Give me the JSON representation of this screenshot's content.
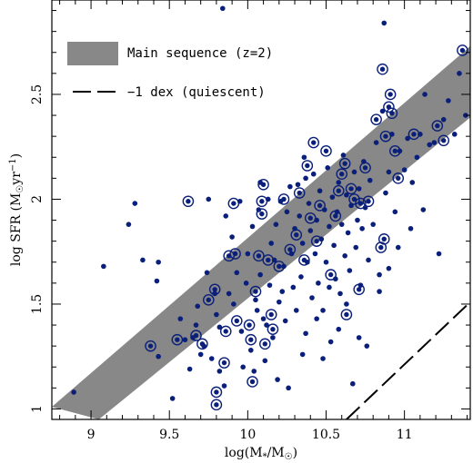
{
  "chart_data": {
    "type": "scatter",
    "xlabel": "log(M*/M☉)",
    "ylabel": "log SFR (M☉yr⁻¹)",
    "xlim": [
      8.75,
      11.42
    ],
    "ylim": [
      0.95,
      2.95
    ],
    "x_ticks": [
      "9",
      "9.5",
      "10",
      "10.5",
      "11"
    ],
    "x_tick_values": [
      9,
      9.5,
      10,
      10.5,
      11
    ],
    "y_ticks": [
      "1",
      "1.5",
      "2",
      "2.5"
    ],
    "y_tick_values": [
      1,
      1.5,
      2,
      2.5
    ],
    "legend": {
      "position": "top-left",
      "main_sequence_label": "Main sequence (z=2)",
      "quiescent_label": "−1 dex (quiescent)"
    },
    "band": {
      "name": "Main sequence (z=2)",
      "color": "#888888",
      "lower": [
        [
          9.05,
          0.95
        ],
        [
          11.42,
          2.39
        ]
      ],
      "upper": [
        [
          8.75,
          1.01
        ],
        [
          11.42,
          2.73
        ]
      ]
    },
    "quiescent_line": {
      "name": "−1 dex (quiescent)",
      "points": [
        [
          10.63,
          0.95
        ],
        [
          11.42,
          1.51
        ]
      ]
    },
    "series": [
      {
        "marker": "dot",
        "color": "#0a1f7a",
        "points": [
          [
            8.89,
            1.08
          ],
          [
            9.08,
            1.68
          ],
          [
            9.24,
            1.88
          ],
          [
            9.28,
            1.98
          ],
          [
            9.33,
            1.71
          ],
          [
            9.42,
            1.61
          ],
          [
            9.43,
            1.7
          ],
          [
            9.43,
            1.25
          ],
          [
            9.52,
            1.05
          ],
          [
            9.57,
            1.43
          ],
          [
            9.63,
            1.19
          ],
          [
            9.65,
            1.34
          ],
          [
            9.67,
            1.4
          ],
          [
            9.68,
            1.49
          ],
          [
            9.7,
            1.26
          ],
          [
            9.74,
            1.65
          ],
          [
            9.75,
            2.0
          ],
          [
            9.77,
            1.24
          ],
          [
            9.79,
            1.55
          ],
          [
            9.82,
            1.39
          ],
          [
            9.82,
            1.18
          ],
          [
            9.85,
            1.11
          ],
          [
            9.84,
            2.91
          ],
          [
            9.88,
            1.55
          ],
          [
            9.9,
            1.82
          ],
          [
            9.91,
            1.5
          ],
          [
            9.93,
            1.65
          ],
          [
            9.95,
            1.99
          ],
          [
            9.96,
            1.37
          ],
          [
            9.99,
            1.6
          ],
          [
            10.0,
            1.74
          ],
          [
            10.02,
            1.28
          ],
          [
            10.03,
            1.87
          ],
          [
            10.04,
            1.18
          ],
          [
            10.06,
            1.47
          ],
          [
            10.07,
            1.95
          ],
          [
            10.08,
            1.64
          ],
          [
            10.1,
            1.43
          ],
          [
            10.11,
            1.23
          ],
          [
            10.13,
            2.0
          ],
          [
            10.14,
            1.59
          ],
          [
            10.15,
            1.79
          ],
          [
            10.16,
            1.34
          ],
          [
            10.17,
            1.71
          ],
          [
            10.18,
            1.88
          ],
          [
            10.2,
            1.51
          ],
          [
            10.21,
            1.99
          ],
          [
            10.23,
            1.68
          ],
          [
            10.24,
            1.42
          ],
          [
            10.25,
            1.94
          ],
          [
            10.26,
            1.1
          ],
          [
            10.27,
            2.06
          ],
          [
            10.28,
            1.74
          ],
          [
            10.29,
            1.58
          ],
          [
            10.3,
            1.86
          ],
          [
            10.31,
            1.47
          ],
          [
            10.32,
            2.07
          ],
          [
            10.33,
            1.92
          ],
          [
            10.34,
            1.63
          ],
          [
            10.35,
            1.79
          ],
          [
            10.36,
            2.2
          ],
          [
            10.37,
            1.36
          ],
          [
            10.38,
            1.7
          ],
          [
            10.39,
            1.98
          ],
          [
            10.4,
            1.85
          ],
          [
            10.41,
            1.53
          ],
          [
            10.42,
            2.12
          ],
          [
            10.43,
            1.74
          ],
          [
            10.44,
            1.9
          ],
          [
            10.45,
            1.6
          ],
          [
            10.46,
            2.04
          ],
          [
            10.47,
            1.81
          ],
          [
            10.48,
            1.47
          ],
          [
            10.49,
            1.95
          ],
          [
            10.5,
            1.7
          ],
          [
            10.51,
            2.15
          ],
          [
            10.52,
            1.87
          ],
          [
            10.53,
            1.32
          ],
          [
            10.54,
            2.01
          ],
          [
            10.55,
            1.78
          ],
          [
            10.56,
            1.62
          ],
          [
            10.57,
            1.94
          ],
          [
            10.58,
            2.08
          ],
          [
            10.59,
            1.55
          ],
          [
            10.6,
            1.88
          ],
          [
            10.61,
            2.21
          ],
          [
            10.62,
            1.73
          ],
          [
            10.63,
            2.02
          ],
          [
            10.64,
            1.84
          ],
          [
            10.65,
            1.66
          ],
          [
            10.66,
            1.97
          ],
          [
            10.67,
            1.12
          ],
          [
            10.68,
            2.13
          ],
          [
            10.69,
            1.77
          ],
          [
            10.7,
            1.9
          ],
          [
            10.71,
            2.05
          ],
          [
            10.72,
            1.59
          ],
          [
            10.73,
            1.86
          ],
          [
            10.74,
            2.18
          ],
          [
            10.75,
            1.96
          ],
          [
            10.77,
            1.71
          ],
          [
            10.78,
            2.09
          ],
          [
            10.8,
            1.88
          ],
          [
            10.82,
            2.27
          ],
          [
            10.84,
            1.64
          ],
          [
            10.86,
            2.42
          ],
          [
            10.87,
            2.84
          ],
          [
            10.88,
            2.03
          ],
          [
            10.9,
            2.13
          ],
          [
            10.92,
            2.31
          ],
          [
            10.94,
            1.94
          ],
          [
            10.97,
            2.23
          ],
          [
            11.0,
            2.14
          ],
          [
            11.02,
            2.29
          ],
          [
            11.05,
            2.08
          ],
          [
            11.08,
            2.2
          ],
          [
            11.1,
            2.31
          ],
          [
            11.13,
            2.5
          ],
          [
            11.16,
            2.26
          ],
          [
            11.19,
            2.27
          ],
          [
            11.22,
            1.74
          ],
          [
            11.25,
            2.38
          ],
          [
            11.28,
            2.47
          ],
          [
            11.32,
            2.31
          ],
          [
            11.35,
            2.6
          ],
          [
            11.39,
            2.4
          ],
          [
            9.72,
            1.3
          ],
          [
            9.8,
            1.45
          ],
          [
            9.97,
            1.2
          ],
          [
            10.05,
            1.52
          ],
          [
            10.12,
            1.4
          ],
          [
            10.19,
            1.14
          ],
          [
            10.22,
            1.56
          ],
          [
            10.35,
            1.26
          ],
          [
            10.44,
            1.43
          ],
          [
            10.48,
            1.24
          ],
          [
            10.52,
            1.58
          ],
          [
            10.58,
            1.38
          ],
          [
            10.63,
            1.5
          ],
          [
            10.71,
            1.34
          ],
          [
            10.76,
            1.3
          ],
          [
            10.84,
            1.56
          ],
          [
            10.9,
            1.67
          ],
          [
            10.96,
            1.77
          ],
          [
            11.04,
            1.86
          ],
          [
            11.12,
            1.95
          ],
          [
            9.6,
            1.33
          ],
          [
            9.86,
            1.92
          ],
          [
            10.08,
            2.08
          ],
          [
            10.37,
            2.1
          ]
        ]
      },
      {
        "marker": "ring",
        "color": "#0a1f7a",
        "points": [
          [
            9.38,
            1.3
          ],
          [
            9.55,
            1.33
          ],
          [
            9.62,
            1.99
          ],
          [
            9.67,
            1.35
          ],
          [
            9.71,
            1.31
          ],
          [
            9.75,
            1.52
          ],
          [
            9.79,
            1.57
          ],
          [
            9.8,
            1.02
          ],
          [
            9.8,
            1.08
          ],
          [
            9.85,
            1.22
          ],
          [
            9.86,
            1.37
          ],
          [
            9.88,
            1.73
          ],
          [
            9.91,
            1.98
          ],
          [
            9.92,
            1.74
          ],
          [
            9.93,
            1.42
          ],
          [
            10.01,
            1.4
          ],
          [
            10.02,
            1.33
          ],
          [
            10.03,
            1.13
          ],
          [
            10.05,
            1.56
          ],
          [
            10.07,
            1.73
          ],
          [
            10.09,
            1.99
          ],
          [
            10.09,
            1.93
          ],
          [
            10.1,
            2.07
          ],
          [
            10.11,
            1.31
          ],
          [
            10.13,
            1.71
          ],
          [
            10.15,
            1.45
          ],
          [
            10.16,
            1.38
          ],
          [
            10.2,
            1.68
          ],
          [
            10.23,
            2.0
          ],
          [
            10.27,
            1.76
          ],
          [
            10.31,
            1.83
          ],
          [
            10.33,
            2.03
          ],
          [
            10.36,
            1.71
          ],
          [
            10.38,
            2.16
          ],
          [
            10.4,
            1.91
          ],
          [
            10.42,
            2.27
          ],
          [
            10.44,
            1.8
          ],
          [
            10.46,
            1.97
          ],
          [
            10.5,
            2.23
          ],
          [
            10.53,
            1.64
          ],
          [
            10.56,
            1.92
          ],
          [
            10.58,
            2.04
          ],
          [
            10.6,
            2.12
          ],
          [
            10.62,
            2.17
          ],
          [
            10.63,
            1.45
          ],
          [
            10.66,
            2.05
          ],
          [
            10.68,
            2.0
          ],
          [
            10.71,
            1.57
          ],
          [
            10.72,
            1.98
          ],
          [
            10.75,
            2.15
          ],
          [
            10.77,
            1.99
          ],
          [
            10.82,
            2.38
          ],
          [
            10.85,
            1.77
          ],
          [
            10.86,
            2.62
          ],
          [
            10.87,
            1.81
          ],
          [
            10.88,
            2.3
          ],
          [
            10.9,
            2.44
          ],
          [
            10.91,
            2.5
          ],
          [
            10.92,
            2.41
          ],
          [
            10.94,
            2.23
          ],
          [
            10.96,
            2.1
          ],
          [
            11.06,
            2.31
          ],
          [
            11.21,
            2.35
          ],
          [
            11.25,
            2.28
          ],
          [
            11.37,
            2.71
          ]
        ]
      }
    ]
  }
}
